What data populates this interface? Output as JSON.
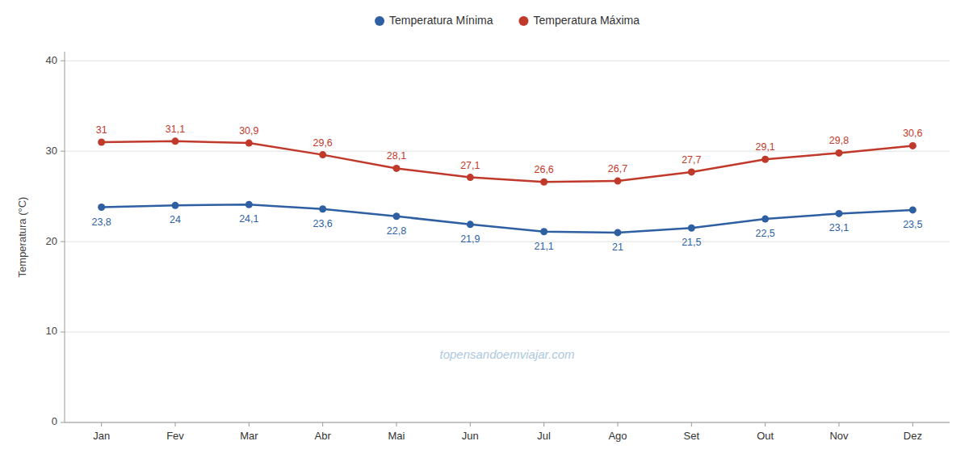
{
  "chart_data": {
    "type": "line",
    "categories": [
      "Jan",
      "Fev",
      "Mar",
      "Abr",
      "Mai",
      "Jun",
      "Jul",
      "Ago",
      "Set",
      "Out",
      "Nov",
      "Dez"
    ],
    "series": [
      {
        "name": "Temperatura Mínima",
        "color": "#2e5fa3",
        "values": [
          23.8,
          24.0,
          24.1,
          23.6,
          22.8,
          21.9,
          21.1,
          21.0,
          21.5,
          22.5,
          23.1,
          23.5
        ],
        "value_labels": [
          "23,8",
          "24",
          "24,1",
          "23,6",
          "22,8",
          "21,9",
          "21,1",
          "21",
          "21,5",
          "22,5",
          "23,1",
          "23,5"
        ]
      },
      {
        "name": "Temperatura Máxima",
        "color": "#c0392b",
        "values": [
          31.0,
          31.1,
          30.9,
          29.6,
          28.1,
          27.1,
          26.6,
          26.7,
          27.7,
          29.1,
          29.8,
          30.6
        ],
        "value_labels": [
          "31",
          "31,1",
          "30,9",
          "29,6",
          "28,1",
          "27,1",
          "26,6",
          "26,7",
          "27,7",
          "29,1",
          "29,8",
          "30,6"
        ]
      }
    ],
    "ylabel": "Temperatura (°C)",
    "ylim": [
      0,
      41
    ],
    "yticks": [
      0,
      10,
      20,
      30,
      40
    ],
    "grid": true,
    "legend": "top",
    "data_labels": true,
    "marker": "circle",
    "annotation": "topensandoemviajar.com"
  }
}
